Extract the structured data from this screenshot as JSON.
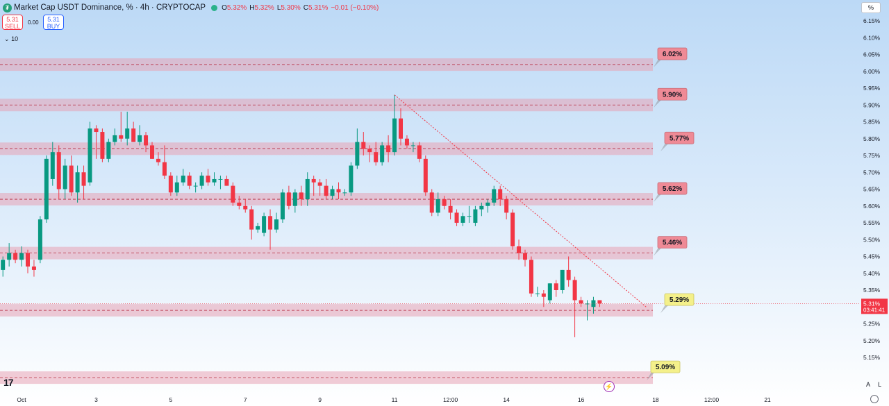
{
  "header": {
    "title": "Market Cap USDT Dominance, % · 4h · CRYPTOCAP",
    "ohlc": [
      {
        "k": "O",
        "v": "5.32%"
      },
      {
        "k": "H",
        "v": "5.32%"
      },
      {
        "k": "L",
        "v": "5.30%"
      },
      {
        "k": "C",
        "v": "5.31%"
      }
    ],
    "change": "−0.01 (−0.10%)",
    "sell_price": "5.31",
    "sell_label": "SELL",
    "buy_price": "5.31",
    "buy_label": "BUY",
    "spread": "0.00",
    "indicator_count": "10",
    "scale_mode": "%"
  },
  "colors": {
    "up": "#089981",
    "down": "#f23645",
    "zone": "#e8a3b4",
    "label_red": "#ef8a96",
    "label_yellow": "#f4f08a",
    "trend": "#f23645"
  },
  "icons": [
    "logo-icon",
    "chevron-down-icon",
    "tradingview-logo-icon",
    "lightning-icon",
    "settings-gear-icon"
  ],
  "bottom": {
    "auto": "A",
    "log": "L"
  },
  "chart_data": {
    "type": "candlestick",
    "y_axis": {
      "min": 5.13,
      "max": 6.19,
      "unit": "%",
      "ticks": [
        "6.15%",
        "6.10%",
        "6.05%",
        "6.00%",
        "5.95%",
        "5.90%",
        "5.85%",
        "5.80%",
        "5.75%",
        "5.70%",
        "5.65%",
        "5.60%",
        "5.55%",
        "5.50%",
        "5.45%",
        "5.40%",
        "5.35%",
        "5.30%",
        "5.25%",
        "5.20%",
        "5.15%"
      ]
    },
    "x_axis": {
      "ticks": [
        {
          "label": "Oct",
          "bar": 3
        },
        {
          "label": "3",
          "bar": 15
        },
        {
          "label": "5",
          "bar": 27
        },
        {
          "label": "7",
          "bar": 39
        },
        {
          "label": "9",
          "bar": 51
        },
        {
          "label": "11",
          "bar": 63
        },
        {
          "label": "12:00",
          "bar": 72
        },
        {
          "label": "14",
          "bar": 81
        },
        {
          "label": "16",
          "bar": 93
        },
        {
          "label": "18",
          "bar": 105
        },
        {
          "label": "12:00",
          "bar": 114
        },
        {
          "label": "21",
          "bar": 123
        }
      ]
    },
    "candles": [
      [
        5.41,
        5.45,
        5.39,
        5.44
      ],
      [
        5.44,
        5.49,
        5.42,
        5.46
      ],
      [
        5.46,
        5.47,
        5.43,
        5.44
      ],
      [
        5.44,
        5.48,
        5.42,
        5.46
      ],
      [
        5.46,
        5.47,
        5.4,
        5.42
      ],
      [
        5.42,
        5.44,
        5.39,
        5.41
      ],
      [
        5.44,
        5.57,
        5.43,
        5.56
      ],
      [
        5.56,
        5.75,
        5.55,
        5.74
      ],
      [
        5.68,
        5.79,
        5.66,
        5.76
      ],
      [
        5.76,
        5.78,
        5.62,
        5.65
      ],
      [
        5.65,
        5.74,
        5.62,
        5.72
      ],
      [
        5.72,
        5.75,
        5.63,
        5.64
      ],
      [
        5.64,
        5.72,
        5.61,
        5.7
      ],
      [
        5.7,
        5.72,
        5.62,
        5.66
      ],
      [
        5.67,
        5.85,
        5.66,
        5.83
      ],
      [
        5.83,
        5.84,
        5.74,
        5.82
      ],
      [
        5.82,
        5.83,
        5.73,
        5.74
      ],
      [
        5.74,
        5.8,
        5.73,
        5.79
      ],
      [
        5.79,
        5.83,
        5.78,
        5.81
      ],
      [
        5.81,
        5.88,
        5.79,
        5.8
      ],
      [
        5.8,
        5.88,
        5.78,
        5.83
      ],
      [
        5.83,
        5.85,
        5.79,
        5.79
      ],
      [
        5.79,
        5.84,
        5.78,
        5.81
      ],
      [
        5.81,
        5.82,
        5.76,
        5.78
      ],
      [
        5.78,
        5.79,
        5.74,
        5.74
      ],
      [
        5.74,
        5.76,
        5.72,
        5.73
      ],
      [
        5.73,
        5.78,
        5.68,
        5.69
      ],
      [
        5.69,
        5.7,
        5.63,
        5.64
      ],
      [
        5.64,
        5.69,
        5.63,
        5.67
      ],
      [
        5.67,
        5.71,
        5.66,
        5.69
      ],
      [
        5.69,
        5.7,
        5.65,
        5.66
      ],
      [
        5.66,
        5.67,
        5.64,
        5.66
      ],
      [
        5.66,
        5.7,
        5.65,
        5.69
      ],
      [
        5.69,
        5.71,
        5.66,
        5.67
      ],
      [
        5.67,
        5.7,
        5.66,
        5.68
      ],
      [
        5.68,
        5.69,
        5.65,
        5.68
      ],
      [
        5.68,
        5.69,
        5.66,
        5.66
      ],
      [
        5.66,
        5.67,
        5.6,
        5.61
      ],
      [
        5.61,
        5.63,
        5.59,
        5.6
      ],
      [
        5.6,
        5.62,
        5.58,
        5.59
      ],
      [
        5.59,
        5.6,
        5.5,
        5.53
      ],
      [
        5.53,
        5.55,
        5.52,
        5.54
      ],
      [
        5.52,
        5.58,
        5.51,
        5.57
      ],
      [
        5.57,
        5.59,
        5.47,
        5.53
      ],
      [
        5.53,
        5.58,
        5.52,
        5.56
      ],
      [
        5.56,
        5.65,
        5.55,
        5.64
      ],
      [
        5.64,
        5.66,
        5.59,
        5.6
      ],
      [
        5.6,
        5.65,
        5.58,
        5.64
      ],
      [
        5.64,
        5.66,
        5.6,
        5.62
      ],
      [
        5.62,
        5.7,
        5.6,
        5.68
      ],
      [
        5.68,
        5.69,
        5.63,
        5.67
      ],
      [
        5.67,
        5.68,
        5.63,
        5.66
      ],
      [
        5.66,
        5.68,
        5.62,
        5.63
      ],
      [
        5.63,
        5.66,
        5.62,
        5.65
      ],
      [
        5.65,
        5.67,
        5.62,
        5.64
      ],
      [
        5.64,
        5.65,
        5.63,
        5.64
      ],
      [
        5.64,
        5.73,
        5.63,
        5.72
      ],
      [
        5.72,
        5.83,
        5.71,
        5.79
      ],
      [
        5.79,
        5.82,
        5.75,
        5.77
      ],
      [
        5.77,
        5.78,
        5.73,
        5.76
      ],
      [
        5.76,
        5.79,
        5.72,
        5.73
      ],
      [
        5.73,
        5.79,
        5.72,
        5.78
      ],
      [
        5.78,
        5.81,
        5.73,
        5.76
      ],
      [
        5.76,
        5.93,
        5.75,
        5.86
      ],
      [
        5.86,
        5.89,
        5.78,
        5.8
      ],
      [
        5.8,
        5.81,
        5.77,
        5.78
      ],
      [
        5.78,
        5.79,
        5.76,
        5.78
      ],
      [
        5.78,
        5.79,
        5.73,
        5.74
      ],
      [
        5.74,
        5.75,
        5.63,
        5.64
      ],
      [
        5.64,
        5.65,
        5.57,
        5.58
      ],
      [
        5.58,
        5.64,
        5.57,
        5.62
      ],
      [
        5.62,
        5.63,
        5.59,
        5.6
      ],
      [
        5.6,
        5.62,
        5.56,
        5.58
      ],
      [
        5.58,
        5.59,
        5.54,
        5.55
      ],
      [
        5.55,
        5.58,
        5.54,
        5.57
      ],
      [
        5.57,
        5.6,
        5.55,
        5.57
      ],
      [
        5.55,
        5.6,
        5.54,
        5.59
      ],
      [
        5.59,
        5.61,
        5.57,
        5.6
      ],
      [
        5.6,
        5.62,
        5.58,
        5.61
      ],
      [
        5.61,
        5.66,
        5.6,
        5.65
      ],
      [
        5.65,
        5.66,
        5.6,
        5.62
      ],
      [
        5.62,
        5.63,
        5.56,
        5.58
      ],
      [
        5.58,
        5.59,
        5.47,
        5.48
      ],
      [
        5.48,
        5.5,
        5.44,
        5.46
      ],
      [
        5.46,
        5.47,
        5.42,
        5.44
      ],
      [
        5.44,
        5.45,
        5.33,
        5.34
      ],
      [
        5.34,
        5.36,
        5.33,
        5.34
      ],
      [
        5.34,
        5.35,
        5.3,
        5.33
      ],
      [
        5.32,
        5.37,
        5.31,
        5.37
      ],
      [
        5.37,
        5.38,
        5.33,
        5.35
      ],
      [
        5.35,
        5.41,
        5.34,
        5.41
      ],
      [
        5.41,
        5.45,
        5.36,
        5.38
      ],
      [
        5.38,
        5.39,
        5.21,
        5.32
      ],
      [
        5.32,
        5.33,
        5.3,
        5.31
      ],
      [
        5.31,
        5.32,
        5.26,
        5.31
      ],
      [
        5.3,
        5.33,
        5.28,
        5.32
      ],
      [
        5.32,
        5.32,
        5.3,
        5.31
      ]
    ],
    "levels": [
      {
        "label": "6.02%",
        "value": 6.02,
        "kind": "red"
      },
      {
        "label": "5.90%",
        "value": 5.9,
        "kind": "red"
      },
      {
        "label": "5.77%",
        "value": 5.77,
        "kind": "red"
      },
      {
        "label": "5.62%",
        "value": 5.62,
        "kind": "red"
      },
      {
        "label": "5.46%",
        "value": 5.46,
        "kind": "red"
      },
      {
        "label": "5.29%",
        "value": 5.29,
        "kind": "yellow"
      },
      {
        "label": "5.09%",
        "value": 5.09,
        "kind": "yellow"
      }
    ],
    "trendline": {
      "from": {
        "bar": 63,
        "price": 5.93
      },
      "to": {
        "bar": 99,
        "price": 5.3
      }
    },
    "last_price": {
      "label": "5.31%",
      "value": 5.31,
      "countdown": "03:41:41"
    }
  }
}
